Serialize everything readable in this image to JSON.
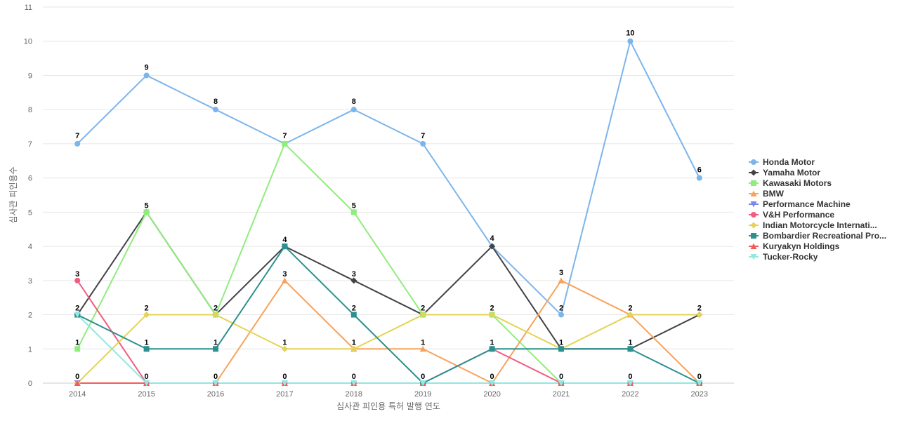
{
  "chart_data": {
    "type": "line",
    "title": "",
    "xlabel": "심사관 피인용 특허 발행 연도",
    "ylabel": "심사관 피인용수",
    "x": [
      "2014",
      "2015",
      "2016",
      "2017",
      "2018",
      "2019",
      "2020",
      "2021",
      "2022",
      "2023"
    ],
    "ylim": [
      0,
      11
    ],
    "yticks": [
      0,
      1,
      2,
      3,
      4,
      5,
      6,
      7,
      8,
      9,
      10,
      11
    ],
    "grid": true,
    "legend_position": "right",
    "series": [
      {
        "name": "Honda Motor",
        "color": "#7cb5ec",
        "marker": "circle",
        "values": [
          7,
          9,
          8,
          7,
          8,
          7,
          4,
          2,
          10,
          6
        ]
      },
      {
        "name": "Yamaha Motor",
        "color": "#434348",
        "marker": "diamond",
        "values": [
          2,
          5,
          2,
          4,
          3,
          2,
          4,
          1,
          1,
          2
        ]
      },
      {
        "name": "Kawasaki Motors",
        "color": "#90ed7d",
        "marker": "square",
        "values": [
          1,
          5,
          2,
          7,
          5,
          2,
          2,
          0,
          0,
          0
        ]
      },
      {
        "name": "BMW",
        "color": "#f7a35c",
        "marker": "triangle",
        "values": [
          0,
          0,
          0,
          3,
          1,
          1,
          0,
          3,
          2,
          0
        ]
      },
      {
        "name": "Performance Machine",
        "color": "#8085e9",
        "marker": "triangle-down",
        "values": [
          0,
          0,
          0,
          0,
          0,
          0,
          0,
          0,
          0,
          0
        ]
      },
      {
        "name": "V&H Performance",
        "color": "#f15c80",
        "marker": "circle",
        "values": [
          3,
          0,
          0,
          0,
          0,
          0,
          1,
          0,
          0,
          0
        ]
      },
      {
        "name": "Indian Motorcycle Internati...",
        "color": "#e4d354",
        "marker": "diamond",
        "values": [
          0,
          2,
          2,
          1,
          1,
          2,
          2,
          1,
          2,
          2
        ]
      },
      {
        "name": "Bombardier Recreational Pro...",
        "color": "#2b908f",
        "marker": "square",
        "values": [
          2,
          1,
          1,
          4,
          2,
          0,
          1,
          1,
          1,
          0
        ]
      },
      {
        "name": "Kuryakyn Holdings",
        "color": "#f45b5b",
        "marker": "triangle",
        "values": [
          0,
          0,
          0,
          0,
          0,
          0,
          0,
          0,
          0,
          0
        ]
      },
      {
        "name": "Tucker-Rocky",
        "color": "#91e8e1",
        "marker": "triangle-down",
        "values": [
          2,
          0,
          0,
          0,
          0,
          0,
          0,
          0,
          0,
          0
        ]
      }
    ],
    "data_labels": [
      7,
      9,
      8,
      7,
      8,
      7,
      4,
      2,
      10,
      6,
      3,
      5,
      4,
      3,
      2,
      4,
      3,
      2,
      1,
      2,
      2,
      1,
      1,
      2,
      1,
      1,
      2,
      2,
      2,
      1,
      1,
      1,
      0,
      0,
      0,
      0,
      0,
      0,
      0,
      0,
      0,
      0
    ]
  }
}
